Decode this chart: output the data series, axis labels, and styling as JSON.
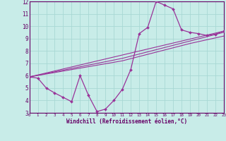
{
  "bg_color": "#c8ece8",
  "grid_color": "#a8d8d4",
  "line_color": "#993399",
  "xlabel": "Windchill (Refroidissement éolien,°C)",
  "xlim": [
    0,
    23
  ],
  "ylim": [
    3,
    12
  ],
  "yticks": [
    3,
    4,
    5,
    6,
    7,
    8,
    9,
    10,
    11,
    12
  ],
  "xticks": [
    0,
    1,
    2,
    3,
    4,
    5,
    6,
    7,
    8,
    9,
    10,
    11,
    12,
    13,
    14,
    15,
    16,
    17,
    18,
    19,
    20,
    21,
    22,
    23
  ],
  "curve_x": [
    0,
    1,
    2,
    3,
    4,
    5,
    6,
    7,
    8,
    9,
    10,
    11,
    12,
    13,
    14,
    15,
    16,
    17,
    18,
    19,
    20,
    21,
    22,
    23
  ],
  "curve_y": [
    5.9,
    5.8,
    5.0,
    4.6,
    4.25,
    3.9,
    6.0,
    4.4,
    3.1,
    3.3,
    4.0,
    4.9,
    6.5,
    9.4,
    9.9,
    12.0,
    11.7,
    11.4,
    9.7,
    9.5,
    9.4,
    9.25,
    9.35,
    9.6
  ],
  "trend1_x": [
    0,
    23
  ],
  "trend1_y": [
    5.9,
    9.6
  ],
  "trend2_x": [
    0,
    11,
    15,
    19,
    23
  ],
  "trend2_y": [
    5.9,
    7.2,
    7.9,
    8.6,
    9.2
  ],
  "trend3_x": [
    0,
    11,
    15,
    19,
    23
  ],
  "trend3_y": [
    5.9,
    7.4,
    8.1,
    8.8,
    9.5
  ]
}
